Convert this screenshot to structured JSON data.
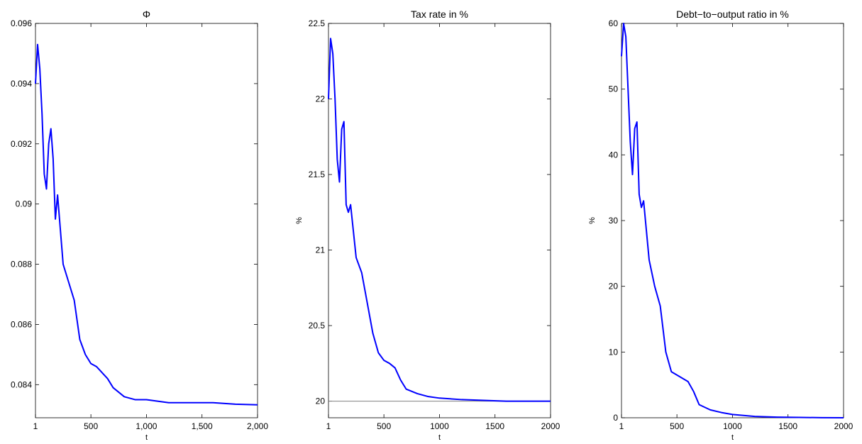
{
  "chart_data": [
    {
      "type": "line",
      "title": "Φ",
      "xlabel": "t",
      "x": [
        1,
        20,
        40,
        60,
        80,
        100,
        120,
        140,
        160,
        180,
        200,
        250,
        300,
        350,
        400,
        450,
        500,
        550,
        600,
        650,
        700,
        800,
        900,
        1000,
        1200,
        1400,
        1600,
        1800,
        2000
      ],
      "series": [
        {
          "color": "#0000ff",
          "values": [
            0.094,
            0.0953,
            0.0945,
            0.093,
            0.091,
            0.0905,
            0.092,
            0.0925,
            0.0915,
            0.0895,
            0.0903,
            0.088,
            0.0874,
            0.0868,
            0.0855,
            0.085,
            0.0847,
            0.0846,
            0.0844,
            0.0842,
            0.0839,
            0.0836,
            0.0835,
            0.0835,
            0.0834,
            0.0834,
            0.0834,
            0.08335,
            0.08333
          ]
        }
      ],
      "xlim": [
        1,
        2000
      ],
      "xticks": [
        1,
        500,
        {
          "value": 1000,
          "label": "1,000"
        },
        {
          "value": 1500,
          "label": "1,500"
        },
        {
          "value": 2000,
          "label": "2,000"
        }
      ],
      "ylim": [
        0.0829,
        0.096
      ],
      "yticks": [
        0.084,
        0.086,
        0.088,
        0.09,
        0.092,
        0.094,
        0.096
      ]
    },
    {
      "type": "line",
      "title": "Tax rate in %",
      "xlabel": "t",
      "ylabel": "%",
      "x": [
        1,
        20,
        40,
        60,
        80,
        100,
        120,
        140,
        160,
        180,
        200,
        250,
        300,
        350,
        400,
        450,
        500,
        550,
        600,
        650,
        700,
        800,
        900,
        1000,
        1200,
        1400,
        1600,
        1800,
        2000
      ],
      "series": [
        {
          "color": "#0000ff",
          "values": [
            22.0,
            22.4,
            22.3,
            22.0,
            21.6,
            21.45,
            21.8,
            21.85,
            21.3,
            21.25,
            21.3,
            20.95,
            20.85,
            20.65,
            20.45,
            20.32,
            20.27,
            20.25,
            20.22,
            20.14,
            20.08,
            20.05,
            20.03,
            20.02,
            20.01,
            20.005,
            20.0,
            20.0,
            20.0
          ]
        }
      ],
      "hline": 20,
      "hline_color": "#808080",
      "xlim": [
        1,
        2000
      ],
      "xticks": [
        1,
        500,
        1000,
        1500,
        2000
      ],
      "ylim": [
        19.89,
        22.5
      ],
      "yticks": [
        20,
        20.5,
        21,
        21.5,
        22,
        22.5
      ]
    },
    {
      "type": "line",
      "title": "Debt−to−output ratio in %",
      "xlabel": "t",
      "ylabel": "%",
      "x": [
        1,
        20,
        40,
        60,
        80,
        100,
        120,
        140,
        160,
        180,
        200,
        250,
        300,
        350,
        400,
        450,
        500,
        550,
        600,
        650,
        700,
        800,
        900,
        1000,
        1200,
        1400,
        1600,
        1800,
        2000
      ],
      "series": [
        {
          "color": "#0000ff",
          "values": [
            55,
            60,
            58,
            50,
            42,
            37,
            44,
            45,
            34,
            32,
            33,
            24,
            20,
            17,
            10,
            7,
            6.5,
            6,
            5.5,
            4,
            2,
            1.2,
            0.8,
            0.5,
            0.2,
            0.1,
            0.05,
            0.02,
            0
          ]
        }
      ],
      "xlim": [
        1,
        2000
      ],
      "xticks": [
        1,
        500,
        1000,
        1500,
        2000
      ],
      "ylim": [
        0,
        60
      ],
      "yticks": [
        0,
        10,
        20,
        30,
        40,
        50,
        60
      ]
    }
  ]
}
